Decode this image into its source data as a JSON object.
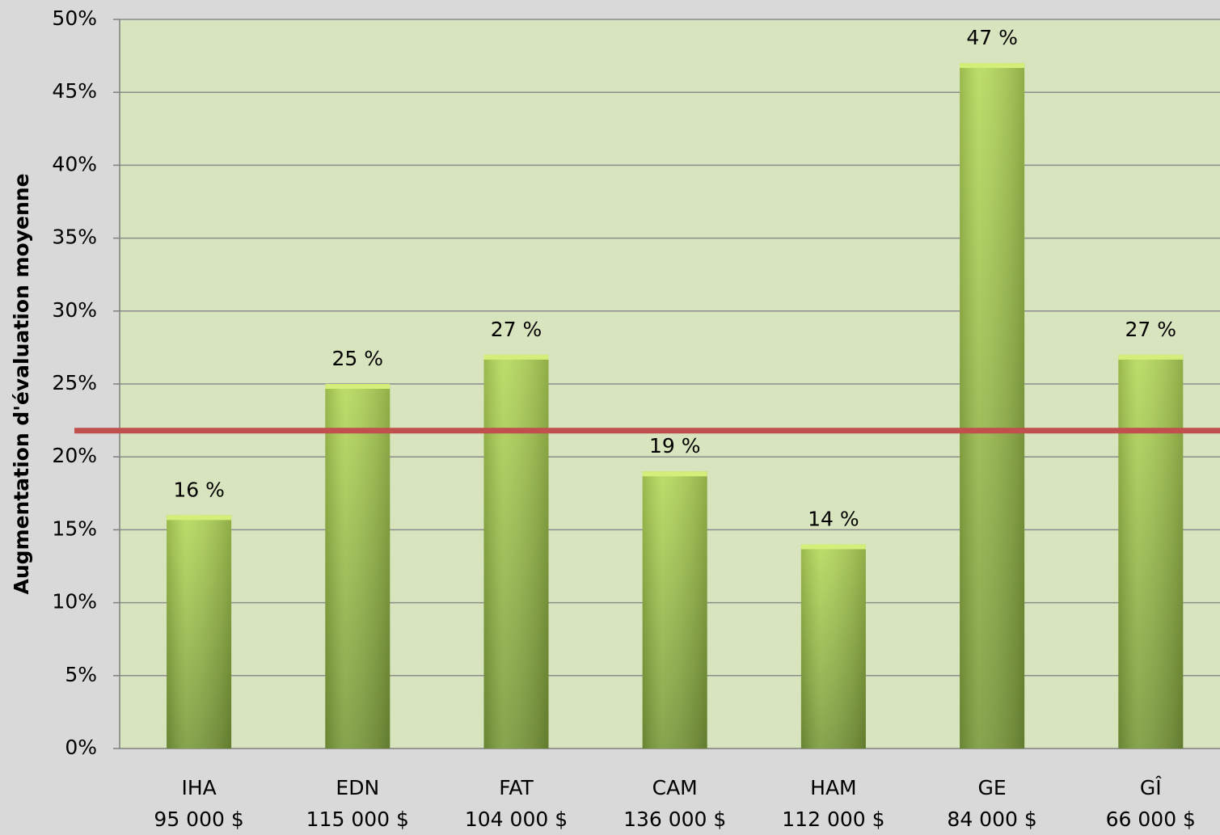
{
  "chart_data": {
    "type": "bar",
    "y_axis_label": "Augmentation d'évaluation moyenne",
    "categories": [
      "IHA",
      "EDN",
      "FAT",
      "CAM",
      "HAM",
      "GE",
      "GÎ"
    ],
    "category_sublabels": [
      "95 000 $",
      "115 000 $",
      "104 000 $",
      "136 000 $",
      "112 000 $",
      "84 000 $",
      "66 000 $"
    ],
    "values": [
      16,
      25,
      27,
      19,
      14,
      47,
      27
    ],
    "value_labels": [
      "16 %",
      "25 %",
      "27 %",
      "19 %",
      "14 %",
      "47 %",
      "27 %"
    ],
    "color": "#9bbb59",
    "ylim": [
      0,
      50
    ],
    "yticks": [
      {
        "value": 0,
        "label": "0%"
      },
      {
        "value": 5,
        "label": "5%"
      },
      {
        "value": 10,
        "label": "10%"
      },
      {
        "value": 15,
        "label": "15%"
      },
      {
        "value": 20,
        "label": "20%"
      },
      {
        "value": 25,
        "label": "25%"
      },
      {
        "value": 30,
        "label": "30%"
      },
      {
        "value": 35,
        "label": "35%"
      },
      {
        "value": 40,
        "label": "40%"
      },
      {
        "value": 45,
        "label": "45%"
      },
      {
        "value": 50,
        "label": "50%"
      }
    ],
    "grid": true,
    "reference_line": {
      "value": 21.8,
      "color": "#c0504d"
    }
  }
}
